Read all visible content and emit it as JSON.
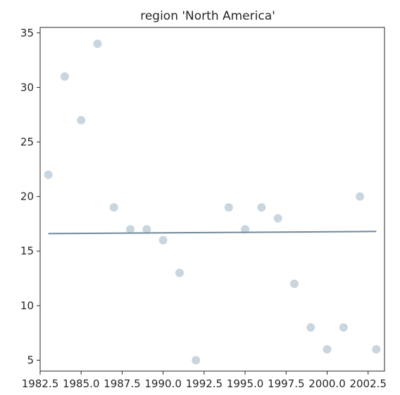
{
  "chart_data": {
    "type": "scatter",
    "title": "region 'North America'",
    "xlabel": "",
    "ylabel": "",
    "xlim": [
      1982.5,
      2003.5
    ],
    "ylim": [
      4.0,
      35.5
    ],
    "grid": false,
    "x_ticks": [
      {
        "value": 1982.5,
        "label": "1982.5"
      },
      {
        "value": 1985.0,
        "label": "1985.0"
      },
      {
        "value": 1987.5,
        "label": "1987.5"
      },
      {
        "value": 1990.0,
        "label": "1990.0"
      },
      {
        "value": 1992.5,
        "label": "1992.5"
      },
      {
        "value": 1995.0,
        "label": "1995.0"
      },
      {
        "value": 1997.5,
        "label": "1997.5"
      },
      {
        "value": 2000.0,
        "label": "2000.0"
      },
      {
        "value": 2002.5,
        "label": "2002.5"
      }
    ],
    "y_ticks": [
      {
        "value": 5,
        "label": "5"
      },
      {
        "value": 10,
        "label": "10"
      },
      {
        "value": 15,
        "label": "15"
      },
      {
        "value": 20,
        "label": "20"
      },
      {
        "value": 25,
        "label": "25"
      },
      {
        "value": 30,
        "label": "30"
      },
      {
        "value": 35,
        "label": "35"
      }
    ],
    "series": [
      {
        "x": [
          1983,
          1984,
          1985,
          1986,
          1987,
          1988,
          1989,
          1990,
          1991,
          1992,
          1994,
          1995,
          1996,
          1997,
          1998,
          1999,
          2000,
          2001,
          2002,
          2003
        ],
        "y": [
          22,
          31,
          27,
          34,
          19,
          17,
          17,
          16,
          13,
          5,
          19,
          17,
          19,
          18,
          12,
          8,
          6,
          8,
          20,
          6
        ],
        "color": "#c9d6e0"
      }
    ],
    "trend_line": {
      "x": [
        1983,
        2003
      ],
      "y": [
        16.6,
        16.8
      ],
      "color": "#6f8898"
    }
  }
}
